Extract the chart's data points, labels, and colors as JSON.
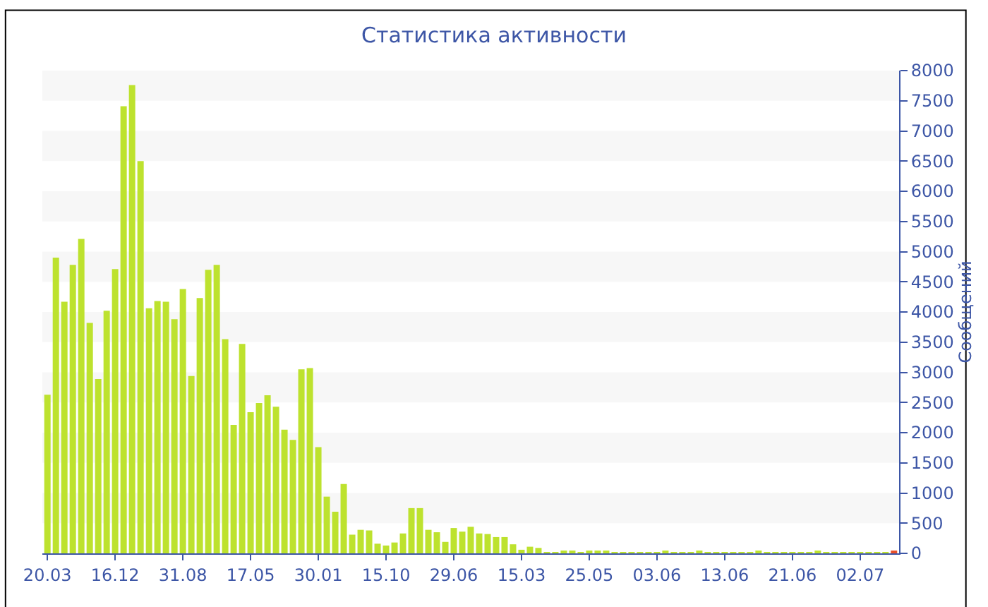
{
  "chart_data": {
    "type": "bar",
    "title": "Статистика активности",
    "ylabel": "Сообщений",
    "categories": [
      "20.03",
      null,
      null,
      null,
      null,
      null,
      null,
      null,
      "16.12",
      null,
      null,
      null,
      null,
      null,
      null,
      null,
      "31.08",
      null,
      null,
      null,
      null,
      null,
      null,
      null,
      "17.05",
      null,
      null,
      null,
      null,
      null,
      null,
      null,
      "30.01",
      null,
      null,
      null,
      null,
      null,
      null,
      null,
      "15.10",
      null,
      null,
      null,
      null,
      null,
      null,
      null,
      "29.06",
      null,
      null,
      null,
      null,
      null,
      null,
      null,
      "15.03",
      null,
      null,
      null,
      null,
      null,
      null,
      null,
      "25.05",
      null,
      null,
      null,
      null,
      null,
      null,
      null,
      "03.06",
      null,
      null,
      null,
      null,
      null,
      null,
      null,
      "13.06",
      null,
      null,
      null,
      null,
      null,
      null,
      null,
      "21.06",
      null,
      null,
      null,
      null,
      null,
      null,
      null,
      "02.07",
      null,
      null,
      null,
      null
    ],
    "values": [
      2630,
      4900,
      4170,
      4780,
      5210,
      3820,
      2890,
      4020,
      4710,
      7410,
      7760,
      6500,
      4060,
      4180,
      4170,
      3880,
      4380,
      2940,
      4230,
      4700,
      4780,
      3550,
      2130,
      3470,
      2340,
      2490,
      2620,
      2430,
      2050,
      1880,
      3050,
      3070,
      1760,
      940,
      690,
      1150,
      310,
      390,
      380,
      160,
      130,
      180,
      330,
      750,
      750,
      390,
      350,
      190,
      420,
      360,
      440,
      330,
      320,
      270,
      270,
      150,
      60,
      110,
      90,
      20,
      20,
      30,
      30,
      20,
      40,
      30,
      30,
      20,
      20,
      20,
      20,
      20,
      20,
      30,
      20,
      20,
      20,
      40,
      20,
      20,
      20,
      20,
      20,
      20,
      30,
      20,
      20,
      20,
      20,
      20,
      20,
      30,
      20,
      20,
      20,
      20,
      20,
      20,
      20,
      20,
      40
    ],
    "colors": [
      "#bde22e",
      "#bde22e",
      "#bde22e",
      "#bde22e",
      "#bde22e",
      "#bde22e",
      "#bde22e",
      "#bde22e",
      "#bde22e",
      "#bde22e",
      "#bde22e",
      "#bde22e",
      "#bde22e",
      "#bde22e",
      "#bde22e",
      "#bde22e",
      "#bde22e",
      "#bde22e",
      "#bde22e",
      "#bde22e",
      "#bde22e",
      "#bde22e",
      "#bde22e",
      "#bde22e",
      "#bde22e",
      "#bde22e",
      "#bde22e",
      "#bde22e",
      "#bde22e",
      "#bde22e",
      "#bde22e",
      "#bde22e",
      "#bde22e",
      "#bde22e",
      "#bde22e",
      "#bde22e",
      "#bde22e",
      "#bde22e",
      "#bde22e",
      "#bde22e",
      "#bde22e",
      "#bde22e",
      "#bde22e",
      "#bde22e",
      "#bde22e",
      "#bde22e",
      "#bde22e",
      "#bde22e",
      "#bde22e",
      "#bde22e",
      "#bde22e",
      "#bde22e",
      "#bde22e",
      "#bde22e",
      "#bde22e",
      "#bde22e",
      "#bde22e",
      "#bde22e",
      "#bde22e",
      "#bde22e",
      "#bde22e",
      "#bde22e",
      "#bde22e",
      "#bde22e",
      "#bde22e",
      "#bde22e",
      "#bde22e",
      "#bde22e",
      "#bde22e",
      "#bde22e",
      "#bde22e",
      "#bde22e",
      "#bde22e",
      "#bde22e",
      "#bde22e",
      "#bde22e",
      "#bde22e",
      "#bde22e",
      "#bde22e",
      "#bde22e",
      "#bde22e",
      "#bde22e",
      "#bde22e",
      "#bde22e",
      "#bde22e",
      "#bde22e",
      "#bde22e",
      "#bde22e",
      "#bde22e",
      "#bde22e",
      "#bde22e",
      "#bde22e",
      "#bde22e",
      "#bde22e",
      "#bde22e",
      "#bde22e",
      "#bde22e",
      "#bde22e",
      "#bde22e",
      "#bde22e",
      "#e8502a"
    ],
    "ylim": [
      0,
      8000
    ],
    "yticks": [
      0,
      500,
      1000,
      1500,
      2000,
      2500,
      3000,
      3500,
      4000,
      4500,
      5000,
      5500,
      6000,
      6500,
      7000,
      7500,
      8000
    ],
    "bands": [
      {
        "axis": "y",
        "from": 500,
        "to": 1000,
        "color": "#f7f7f7"
      },
      {
        "axis": "y",
        "from": 1500,
        "to": 2000,
        "color": "#f7f7f7"
      },
      {
        "axis": "y",
        "from": 2500,
        "to": 3000,
        "color": "#f7f7f7"
      },
      {
        "axis": "y",
        "from": 3500,
        "to": 4000,
        "color": "#f7f7f7"
      },
      {
        "axis": "y",
        "from": 4500,
        "to": 5000,
        "color": "#f7f7f7"
      },
      {
        "axis": "y",
        "from": 5500,
        "to": 6000,
        "color": "#f7f7f7"
      },
      {
        "axis": "y",
        "from": 6500,
        "to": 7000,
        "color": "#f7f7f7"
      },
      {
        "axis": "y",
        "from": 7500,
        "to": 8000,
        "color": "#f7f7f7"
      }
    ],
    "grid": false,
    "legend": false
  }
}
